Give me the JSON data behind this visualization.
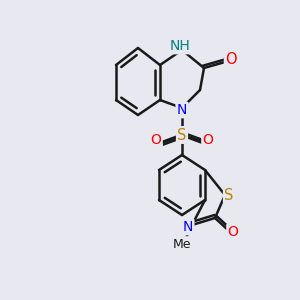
{
  "background_color": "#e8e8f0",
  "bond_color": "#1a1a1a",
  "bond_width": 1.8,
  "atom_colors": {
    "N": "#0000ff",
    "NH": "#008080",
    "O": "#ff0000",
    "S": "#b8860b",
    "C": "#1a1a1a"
  },
  "font_size": 9.5
}
